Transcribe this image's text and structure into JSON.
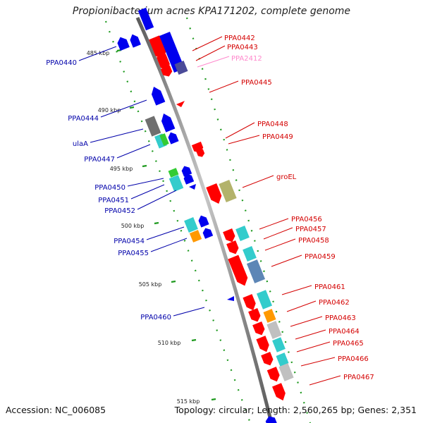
{
  "title": "Propionibacterium acnes KPA171202, complete genome",
  "footer": {
    "accession": "Accession: NC_006085",
    "topology": "Topology: circular; Length: 2,560,265 bp; Genes: 2,351"
  },
  "colors": {
    "backbone": "#8a8a8a",
    "forward_labels": "#d40000",
    "reverse_labels": "#0000aa",
    "faded_label": "#ff88cc",
    "dots": "#1f9a1f"
  },
  "kbp_ticks": [
    "485 kbp",
    "490 kbp",
    "495 kbp",
    "500 kbp",
    "505 kbp",
    "510 kbp",
    "515 kbp"
  ],
  "reverse_genes": [
    "PPA0440",
    "PPA0444",
    "ulaA",
    "PPA0447",
    "PPA0450",
    "PPA0451",
    "PPA0452",
    "PPA0454",
    "PPA0455",
    "PPA0460"
  ],
  "forward_genes": [
    "PPA0442",
    "PPA0443",
    "PPA2412",
    "PPA0445",
    "PPA0448",
    "PPA0449",
    "groEL",
    "PPA0456",
    "PPA0457",
    "PPA0458",
    "PPA0459",
    "PPA0461",
    "PPA0462",
    "PPA0463",
    "PPA0464",
    "PPA0465",
    "PPA0466",
    "PPA0467"
  ]
}
